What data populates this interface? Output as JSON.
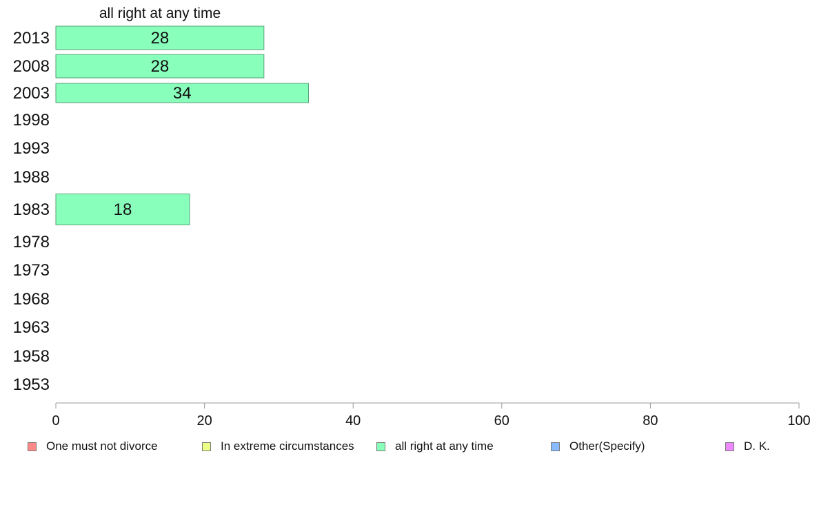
{
  "chart_data": {
    "type": "bar",
    "orientation": "horizontal",
    "title": "",
    "series_header": "all right at any time",
    "categories": [
      "2013",
      "2008",
      "2003",
      "1998",
      "1993",
      "1988",
      "1983",
      "1978",
      "1973",
      "1968",
      "1963",
      "1958",
      "1953"
    ],
    "series": [
      {
        "name": "all right at any time",
        "color": "#88ffbb",
        "values": [
          28,
          28,
          34,
          null,
          null,
          null,
          18,
          null,
          null,
          null,
          null,
          null,
          null
        ],
        "labels": [
          "28",
          "28",
          "34",
          "",
          "",
          "",
          "18",
          "",
          "",
          "",
          "",
          "",
          ""
        ]
      }
    ],
    "xlim": [
      0,
      100
    ],
    "xticks": [
      "0",
      "20",
      "40",
      "60",
      "80",
      "100"
    ],
    "grid": false,
    "legend_position": "bottom",
    "legend": [
      {
        "label": "One must not divorce",
        "color": "#ff8888"
      },
      {
        "label": "In extreme circumstances",
        "color": "#eeff88"
      },
      {
        "label": "all right at any time",
        "color": "#88ffbb"
      },
      {
        "label": "Other(Specify)",
        "color": "#88bbff"
      },
      {
        "label": "D. K.",
        "color": "#ee88ff"
      }
    ]
  }
}
